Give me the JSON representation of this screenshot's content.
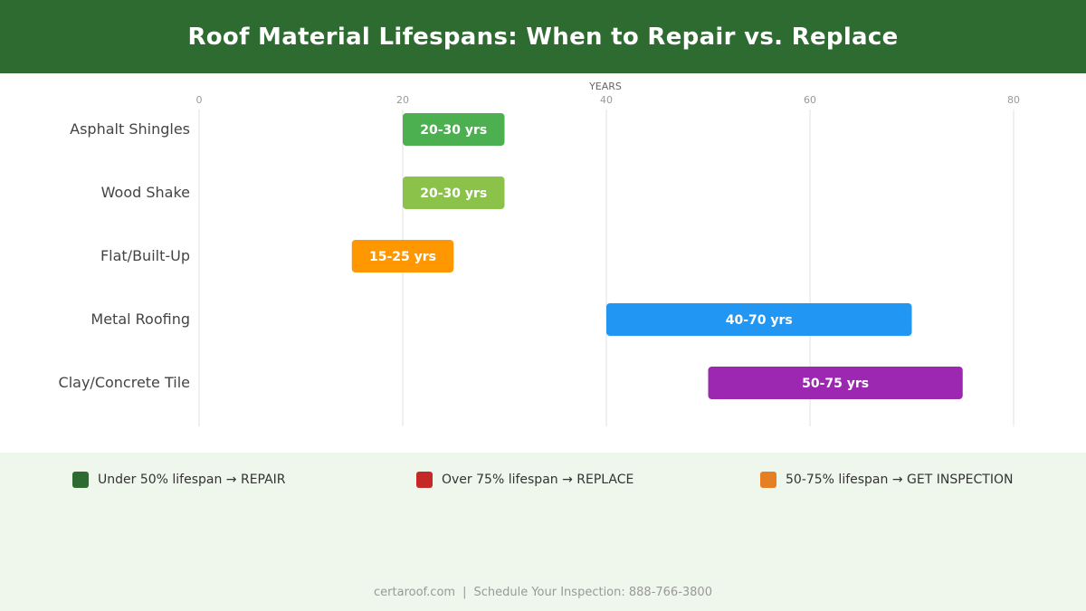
{
  "title": "Roof Material Lifespans: When to Repair vs. Replace",
  "chart_data": {
    "type": "bar",
    "orientation": "horizontal-range",
    "xlabel": "YEARS",
    "xlim": [
      0,
      80
    ],
    "xticks": [
      "0",
      "20",
      "40",
      "60",
      "80"
    ],
    "xtick_values": [
      0,
      20,
      40,
      60,
      80
    ],
    "grid": true,
    "categories": [
      "Asphalt Shingles",
      "Wood Shake",
      "Flat/Built-Up",
      "Metal Roofing",
      "Clay/Concrete Tile"
    ],
    "ranges": [
      [
        20,
        30
      ],
      [
        20,
        30
      ],
      [
        15,
        25
      ],
      [
        40,
        70
      ],
      [
        50,
        75
      ]
    ],
    "labels": [
      "20-30 yrs",
      "20-30 yrs",
      "15-25 yrs",
      "40-70 yrs",
      "50-75 yrs"
    ],
    "colors": [
      "#4caf50",
      "#8bc34a",
      "#ff9800",
      "#2196f3",
      "#9c27b0"
    ]
  },
  "legend": [
    {
      "label": "Under 50% lifespan → REPAIR",
      "color": "#2e6b30"
    },
    {
      "label": "Over 75% lifespan → REPLACE",
      "color": "#c62828"
    },
    {
      "label": "50-75% lifespan → GET INSPECTION",
      "color": "#e67e22"
    }
  ],
  "footer": {
    "site": "certaroof.com",
    "separator": "|",
    "cta": "Schedule Your Inspection: 888-766-3800"
  }
}
